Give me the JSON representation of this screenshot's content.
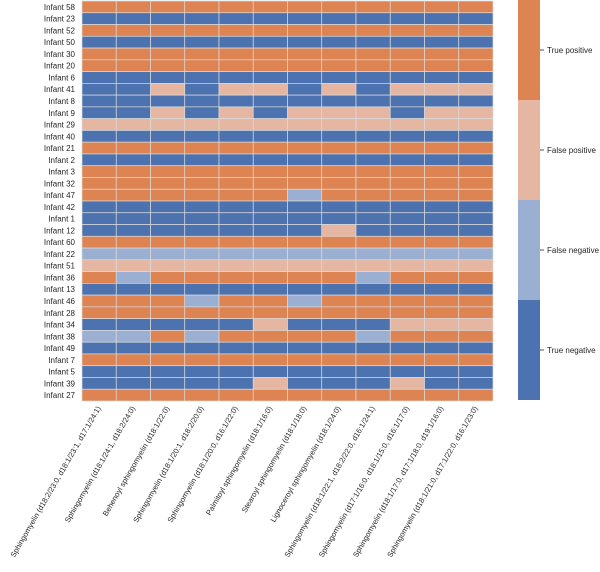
{
  "chart_data": {
    "type": "heatmap",
    "title": "",
    "xlabel": "",
    "ylabel": "",
    "legend_position": "right",
    "categories_legend": [
      {
        "code": "TP",
        "label": "True positive",
        "color": "#dd8452"
      },
      {
        "code": "FP",
        "label": "False positive",
        "color": "#e5b6a1"
      },
      {
        "code": "FN",
        "label": "False negative",
        "color": "#9bafd3"
      },
      {
        "code": "TN",
        "label": "True negative",
        "color": "#4c72b0"
      }
    ],
    "columns": [
      "Sphingomyelin (d18:2/23:0, d18:1/23:1, d17:1/24:1)",
      "Sphingomyelin (d18:1/24:1, d18:2/24:0)",
      "Behenoyl sphingomyelin (d18:1/22:0)",
      "Sphingomyelin (d18:1/20:1, d18:2/20:0)",
      "Sphingomyelin (d18:1/20:0, d16:1/22:0)",
      "Palmitoyl sphingomyelin (d18:1/16:0)",
      "Stearoyl sphingomyelin (d18:1/18:0)",
      "Lignoceroyl sphingomyelin (d18:1/24:0)",
      "Sphingomyelin (d18:1/22:1, d18:2/22:0, d16:1/24:1)",
      "Sphingomyelin (d17:1/16:0, d18:1/15:0, d16:1/17:0)",
      "Sphingomyelin (d18:1/17:0, d17:1/18:0, d19:1/16:0)",
      "Sphingomyelin (d18:1/21:0, d17:1/22:0, d16:1/23:0)"
    ],
    "rows": [
      {
        "label": "Infant 58",
        "values": [
          "TP",
          "TP",
          "TP",
          "TP",
          "TP",
          "TP",
          "TP",
          "TP",
          "TP",
          "TP",
          "TP",
          "TP"
        ]
      },
      {
        "label": "Infant 23",
        "values": [
          "TN",
          "TN",
          "TN",
          "TN",
          "TN",
          "TN",
          "TN",
          "TN",
          "TN",
          "TN",
          "TN",
          "TN"
        ]
      },
      {
        "label": "Infant 52",
        "values": [
          "TP",
          "TP",
          "TP",
          "TP",
          "TP",
          "TP",
          "TP",
          "TP",
          "TP",
          "TP",
          "TP",
          "TP"
        ]
      },
      {
        "label": "Infant 50",
        "values": [
          "TN",
          "TN",
          "TN",
          "TN",
          "TN",
          "TN",
          "TN",
          "TN",
          "TN",
          "TN",
          "TN",
          "TN"
        ]
      },
      {
        "label": "Infant 30",
        "values": [
          "TP",
          "TP",
          "TP",
          "TP",
          "TP",
          "TP",
          "TP",
          "TP",
          "TP",
          "TP",
          "TP",
          "TP"
        ]
      },
      {
        "label": "Infant 20",
        "values": [
          "TP",
          "TP",
          "TP",
          "TP",
          "TP",
          "TP",
          "TP",
          "TP",
          "TP",
          "TP",
          "TP",
          "TP"
        ]
      },
      {
        "label": "Infant 6",
        "values": [
          "TN",
          "TN",
          "TN",
          "TN",
          "TN",
          "TN",
          "TN",
          "TN",
          "TN",
          "TN",
          "TN",
          "TN"
        ]
      },
      {
        "label": "Infant 41",
        "values": [
          "TN",
          "TN",
          "FP",
          "TN",
          "FP",
          "FP",
          "TN",
          "FP",
          "TN",
          "FP",
          "FP",
          "FP"
        ]
      },
      {
        "label": "Infant 8",
        "values": [
          "TN",
          "TN",
          "TN",
          "TN",
          "TN",
          "TN",
          "TN",
          "TN",
          "TN",
          "TN",
          "TN",
          "TN"
        ]
      },
      {
        "label": "Infant 9",
        "values": [
          "TN",
          "TN",
          "FP",
          "TN",
          "FP",
          "TN",
          "FP",
          "FP",
          "FP",
          "TN",
          "FP",
          "FP"
        ]
      },
      {
        "label": "Infant 29",
        "values": [
          "FP",
          "FP",
          "FP",
          "FP",
          "FP",
          "FP",
          "FP",
          "FP",
          "FP",
          "FP",
          "FP",
          "FP"
        ]
      },
      {
        "label": "Infant 40",
        "values": [
          "TN",
          "TN",
          "TN",
          "TN",
          "TN",
          "TN",
          "TN",
          "TN",
          "TN",
          "TN",
          "TN",
          "TN"
        ]
      },
      {
        "label": "Infant 21",
        "values": [
          "TP",
          "TP",
          "TP",
          "TP",
          "TP",
          "TP",
          "TP",
          "TP",
          "TP",
          "TP",
          "TP",
          "TP"
        ]
      },
      {
        "label": "Infant 2",
        "values": [
          "TN",
          "TN",
          "TN",
          "TN",
          "TN",
          "TN",
          "TN",
          "TN",
          "TN",
          "TN",
          "TN",
          "TN"
        ]
      },
      {
        "label": "Infant 3",
        "values": [
          "TP",
          "TP",
          "TP",
          "TP",
          "TP",
          "TP",
          "TP",
          "TP",
          "TP",
          "TP",
          "TP",
          "TP"
        ]
      },
      {
        "label": "Infant 32",
        "values": [
          "TP",
          "TP",
          "TP",
          "TP",
          "TP",
          "TP",
          "TP",
          "TP",
          "TP",
          "TP",
          "TP",
          "TP"
        ]
      },
      {
        "label": "Infant 47",
        "values": [
          "TP",
          "TP",
          "TP",
          "TP",
          "TP",
          "TP",
          "FN",
          "TP",
          "TP",
          "TP",
          "TP",
          "TP"
        ]
      },
      {
        "label": "Infant 42",
        "values": [
          "TN",
          "TN",
          "TN",
          "TN",
          "TN",
          "TN",
          "TN",
          "TN",
          "TN",
          "TN",
          "TN",
          "TN"
        ]
      },
      {
        "label": "Infant 1",
        "values": [
          "TN",
          "TN",
          "TN",
          "TN",
          "TN",
          "TN",
          "TN",
          "TN",
          "TN",
          "TN",
          "TN",
          "TN"
        ]
      },
      {
        "label": "Infant 12",
        "values": [
          "TN",
          "TN",
          "TN",
          "TN",
          "TN",
          "TN",
          "TN",
          "FP",
          "TN",
          "TN",
          "TN",
          "TN"
        ]
      },
      {
        "label": "Infant 60",
        "values": [
          "TP",
          "TP",
          "TP",
          "TP",
          "TP",
          "TP",
          "TP",
          "TP",
          "TP",
          "TP",
          "TP",
          "TP"
        ]
      },
      {
        "label": "Infant 22",
        "values": [
          "FN",
          "FN",
          "FN",
          "FN",
          "FN",
          "FN",
          "FN",
          "FN",
          "FN",
          "FN",
          "FN",
          "FN"
        ]
      },
      {
        "label": "Infant 51",
        "values": [
          "FP",
          "FP",
          "FP",
          "FP",
          "FP",
          "FP",
          "FP",
          "FP",
          "FP",
          "FP",
          "FP",
          "FP"
        ]
      },
      {
        "label": "Infant 36",
        "values": [
          "TP",
          "FN",
          "TP",
          "TP",
          "TP",
          "TP",
          "TP",
          "TP",
          "FN",
          "TP",
          "TP",
          "TP"
        ]
      },
      {
        "label": "Infant 13",
        "values": [
          "TN",
          "TN",
          "TN",
          "TN",
          "TN",
          "TN",
          "TN",
          "TN",
          "TN",
          "TN",
          "TN",
          "TN"
        ]
      },
      {
        "label": "Infant 46",
        "values": [
          "TP",
          "TP",
          "TP",
          "FN",
          "TP",
          "TP",
          "FN",
          "TP",
          "TP",
          "TP",
          "TP",
          "TP"
        ]
      },
      {
        "label": "Infant 28",
        "values": [
          "TP",
          "TP",
          "TP",
          "TP",
          "TP",
          "TP",
          "TP",
          "TP",
          "TP",
          "TP",
          "TP",
          "TP"
        ]
      },
      {
        "label": "Infant 34",
        "values": [
          "TN",
          "TN",
          "TN",
          "TN",
          "TN",
          "FP",
          "TN",
          "TN",
          "TN",
          "FP",
          "FP",
          "FP"
        ]
      },
      {
        "label": "Infant 38",
        "values": [
          "FN",
          "FN",
          "TP",
          "FN",
          "TP",
          "TP",
          "TP",
          "TP",
          "FN",
          "TP",
          "TP",
          "TP"
        ]
      },
      {
        "label": "Infant 49",
        "values": [
          "TN",
          "TN",
          "TN",
          "TN",
          "TN",
          "TN",
          "TN",
          "TN",
          "TN",
          "TN",
          "TN",
          "TN"
        ]
      },
      {
        "label": "Infant 7",
        "values": [
          "TP",
          "TP",
          "TP",
          "TP",
          "TP",
          "TP",
          "TP",
          "TP",
          "TP",
          "TP",
          "TP",
          "TP"
        ]
      },
      {
        "label": "Infant 5",
        "values": [
          "TN",
          "TN",
          "TN",
          "TN",
          "TN",
          "TN",
          "TN",
          "TN",
          "TN",
          "TN",
          "TN",
          "TN"
        ]
      },
      {
        "label": "Infant 39",
        "values": [
          "TN",
          "TN",
          "TN",
          "TN",
          "TN",
          "FP",
          "TN",
          "TN",
          "TN",
          "FP",
          "TN",
          "TN"
        ]
      },
      {
        "label": "Infant 27",
        "values": [
          "TP",
          "TP",
          "TP",
          "TP",
          "TP",
          "TP",
          "TP",
          "TP",
          "TP",
          "TP",
          "TP",
          "TP"
        ]
      }
    ]
  }
}
